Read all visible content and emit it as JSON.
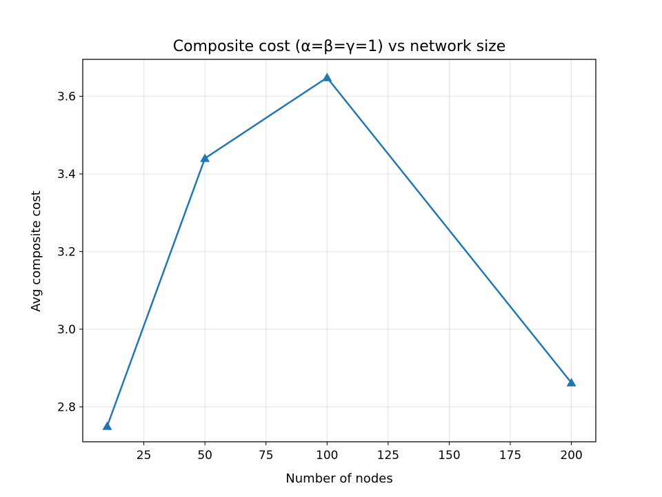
{
  "chart_data": {
    "type": "line",
    "title": "Composite cost (α=β=γ=1) vs network size",
    "xlabel": "Number of nodes",
    "ylabel": "Avg composite cost",
    "xlim": [
      0,
      210
    ],
    "ylim": [
      2.71,
      3.695
    ],
    "xticks": [
      25,
      50,
      75,
      100,
      125,
      150,
      175,
      200
    ],
    "xtick_labels": [
      "25",
      "50",
      "75",
      "100",
      "125",
      "150",
      "175",
      "200"
    ],
    "yticks": [
      2.8,
      3.0,
      3.2,
      3.4,
      3.6
    ],
    "ytick_labels": [
      "2.8",
      "3.0",
      "3.2",
      "3.4",
      "3.6"
    ],
    "grid": true,
    "series": [
      {
        "color": "#1f77b4",
        "marker": "triangle-up",
        "x": [
          10,
          50,
          100,
          200
        ],
        "y": [
          2.75,
          3.44,
          3.648,
          2.862
        ]
      }
    ]
  }
}
